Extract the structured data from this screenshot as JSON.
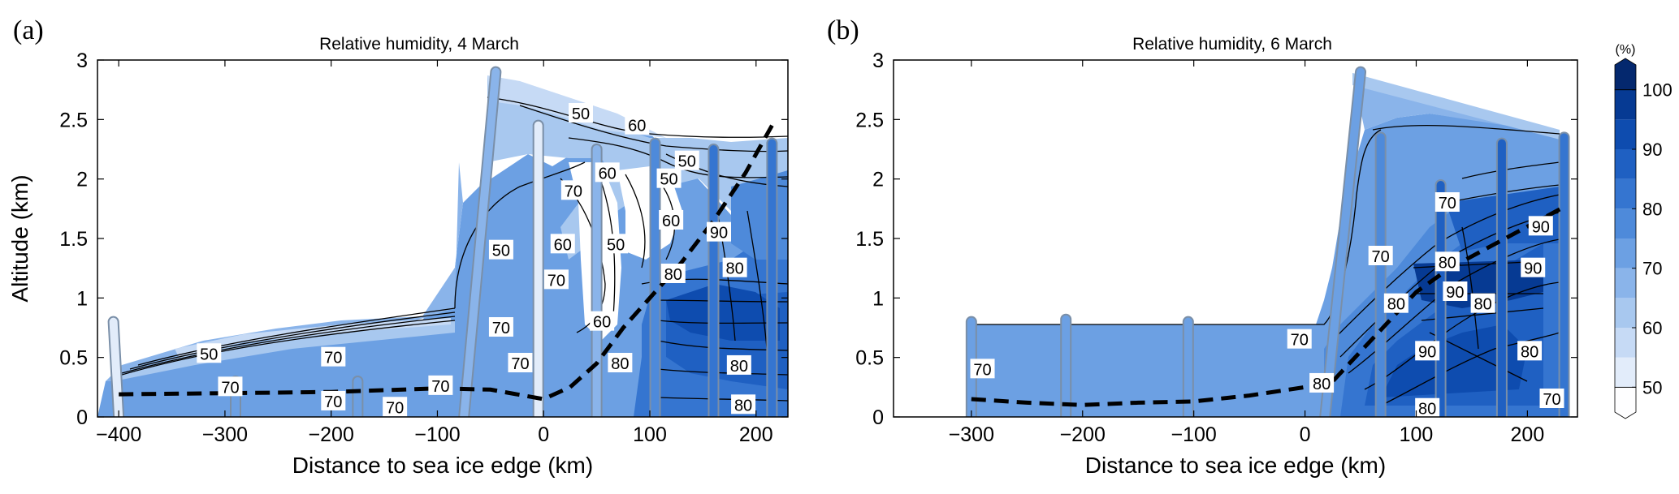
{
  "colorbar": {
    "unit": "(%)",
    "tick_values": [
      50,
      60,
      70,
      80,
      90,
      100
    ],
    "levels": [
      45,
      50,
      55,
      60,
      65,
      70,
      75,
      80,
      85,
      90,
      95,
      100,
      105
    ],
    "colors": [
      "#fefeff",
      "#e2ecfa",
      "#c6daf5",
      "#a8c8ef",
      "#8ab4ea",
      "#6ca0e3",
      "#4e8ada",
      "#3575d0",
      "#1f60c2",
      "#0e4caf",
      "#063a93",
      "#04286e"
    ]
  },
  "chart_data": [
    {
      "type": "contour",
      "panel": "(a)",
      "title": "Relative humidity, 4 March",
      "xlabel": "Distance to sea ice edge (km)",
      "ylabel": "Altitude (km)",
      "xlim": [
        -420,
        230
      ],
      "ylim": [
        0,
        3
      ],
      "xticks": [
        -400,
        -300,
        -200,
        -100,
        0,
        100,
        200
      ],
      "yticks": [
        0,
        0.5,
        1,
        1.5,
        2,
        2.5,
        3
      ],
      "flight_profiles": [
        {
          "x_bottom": -400,
          "x_top": -405,
          "top": 0.8,
          "rh": 50
        },
        {
          "x_bottom": -290,
          "x_top": -290,
          "top": 0.3,
          "rh": 70
        },
        {
          "x_bottom": -175,
          "x_top": -175,
          "top": 0.3,
          "rh": 70
        },
        {
          "x_bottom": -75,
          "x_top": -45,
          "top": 2.9,
          "rh": 65
        },
        {
          "x_bottom": -5,
          "x_top": -5,
          "top": 2.45,
          "rh": 50
        },
        {
          "x_bottom": 50,
          "x_top": 50,
          "top": 2.25,
          "rh": 65
        },
        {
          "x_bottom": 105,
          "x_top": 105,
          "top": 2.3,
          "rh": 75
        },
        {
          "x_bottom": 160,
          "x_top": 160,
          "top": 2.25,
          "rh": 80
        },
        {
          "x_bottom": 215,
          "x_top": 215,
          "top": 2.3,
          "rh": 80
        }
      ],
      "boundary_layer_height": {
        "x": [
          -400,
          -300,
          -200,
          -100,
          -50,
          0,
          25,
          50,
          75,
          100,
          130,
          160,
          190,
          215
        ],
        "y": [
          0.19,
          0.2,
          0.21,
          0.24,
          0.23,
          0.15,
          0.25,
          0.45,
          0.75,
          1.0,
          1.3,
          1.65,
          2.05,
          2.45
        ]
      },
      "contour_labels": [
        {
          "x": -295,
          "y": 0.25,
          "text": "70"
        },
        {
          "x": -198,
          "y": 0.13,
          "text": "70"
        },
        {
          "x": -140,
          "y": 0.08,
          "text": "70"
        },
        {
          "x": -97,
          "y": 0.26,
          "text": "70"
        },
        {
          "x": -22,
          "y": 0.45,
          "text": "70"
        },
        {
          "x": -198,
          "y": 0.5,
          "text": "70"
        },
        {
          "x": -315,
          "y": 0.53,
          "text": "50"
        },
        {
          "x": -40,
          "y": 0.75,
          "text": "70"
        },
        {
          "x": -40,
          "y": 1.4,
          "text": "50"
        },
        {
          "x": 18,
          "y": 1.45,
          "text": "60"
        },
        {
          "x": 12,
          "y": 1.15,
          "text": "70"
        },
        {
          "x": 28,
          "y": 1.9,
          "text": "70"
        },
        {
          "x": 55,
          "y": 0.8,
          "text": "60"
        },
        {
          "x": 68,
          "y": 1.45,
          "text": "50"
        },
        {
          "x": 60,
          "y": 2.05,
          "text": "60"
        },
        {
          "x": 118,
          "y": 2.0,
          "text": "50"
        },
        {
          "x": 135,
          "y": 2.15,
          "text": "50"
        },
        {
          "x": 120,
          "y": 1.65,
          "text": "60"
        },
        {
          "x": 165,
          "y": 1.55,
          "text": "90"
        },
        {
          "x": 122,
          "y": 1.2,
          "text": "80"
        },
        {
          "x": 180,
          "y": 1.25,
          "text": "80"
        },
        {
          "x": 72,
          "y": 0.45,
          "text": "80"
        },
        {
          "x": 184,
          "y": 0.43,
          "text": "80"
        },
        {
          "x": 188,
          "y": 0.1,
          "text": "80"
        },
        {
          "x": 35,
          "y": 2.55,
          "text": "50"
        },
        {
          "x": 88,
          "y": 2.45,
          "text": "60"
        }
      ]
    },
    {
      "type": "contour",
      "panel": "(b)",
      "title": "Relative humidity, 6 March",
      "xlabel": "Distance to sea ice edge (km)",
      "ylabel": "",
      "xlim": [
        -370,
        245
      ],
      "ylim": [
        0,
        3
      ],
      "xticks": [
        -300,
        -200,
        -100,
        0,
        100,
        200
      ],
      "yticks": [
        0,
        0.5,
        1,
        1.5,
        2,
        2.5,
        3
      ],
      "flight_profiles": [
        {
          "x_bottom": -300,
          "x_top": -300,
          "top": 0.8,
          "rh": 70
        },
        {
          "x_bottom": -215,
          "x_top": -215,
          "top": 0.82,
          "rh": 70
        },
        {
          "x_bottom": -105,
          "x_top": -105,
          "top": 0.8,
          "rh": 70
        },
        {
          "x_bottom": 18,
          "x_top": 50,
          "top": 2.9,
          "rh": 70
        },
        {
          "x_bottom": 68,
          "x_top": 68,
          "top": 2.35,
          "rh": 75
        },
        {
          "x_bottom": 122,
          "x_top": 122,
          "top": 1.95,
          "rh": 85
        },
        {
          "x_bottom": 177,
          "x_top": 177,
          "top": 2.3,
          "rh": 85
        },
        {
          "x_bottom": 233,
          "x_top": 233,
          "top": 2.35,
          "rh": 80
        }
      ],
      "boundary_layer_height": {
        "x": [
          -300,
          -250,
          -200,
          -150,
          -100,
          -50,
          0,
          25,
          50,
          75,
          100,
          130,
          160,
          200,
          230
        ],
        "y": [
          0.15,
          0.12,
          0.1,
          0.12,
          0.13,
          0.18,
          0.25,
          0.3,
          0.55,
          0.8,
          1.05,
          1.25,
          1.4,
          1.6,
          1.75
        ]
      },
      "contour_labels": [
        {
          "x": -290,
          "y": 0.4,
          "text": "70"
        },
        {
          "x": -5,
          "y": 0.65,
          "text": "70"
        },
        {
          "x": 15,
          "y": 0.28,
          "text": "80"
        },
        {
          "x": 68,
          "y": 1.35,
          "text": "70"
        },
        {
          "x": 82,
          "y": 0.95,
          "text": "80"
        },
        {
          "x": 110,
          "y": 0.55,
          "text": "90"
        },
        {
          "x": 110,
          "y": 0.07,
          "text": "80"
        },
        {
          "x": 128,
          "y": 1.8,
          "text": "70"
        },
        {
          "x": 128,
          "y": 1.3,
          "text": "80"
        },
        {
          "x": 135,
          "y": 1.05,
          "text": "90"
        },
        {
          "x": 160,
          "y": 0.95,
          "text": "80"
        },
        {
          "x": 205,
          "y": 1.25,
          "text": "90"
        },
        {
          "x": 212,
          "y": 1.6,
          "text": "90"
        },
        {
          "x": 202,
          "y": 0.55,
          "text": "80"
        },
        {
          "x": 222,
          "y": 0.15,
          "text": "70"
        }
      ]
    }
  ]
}
